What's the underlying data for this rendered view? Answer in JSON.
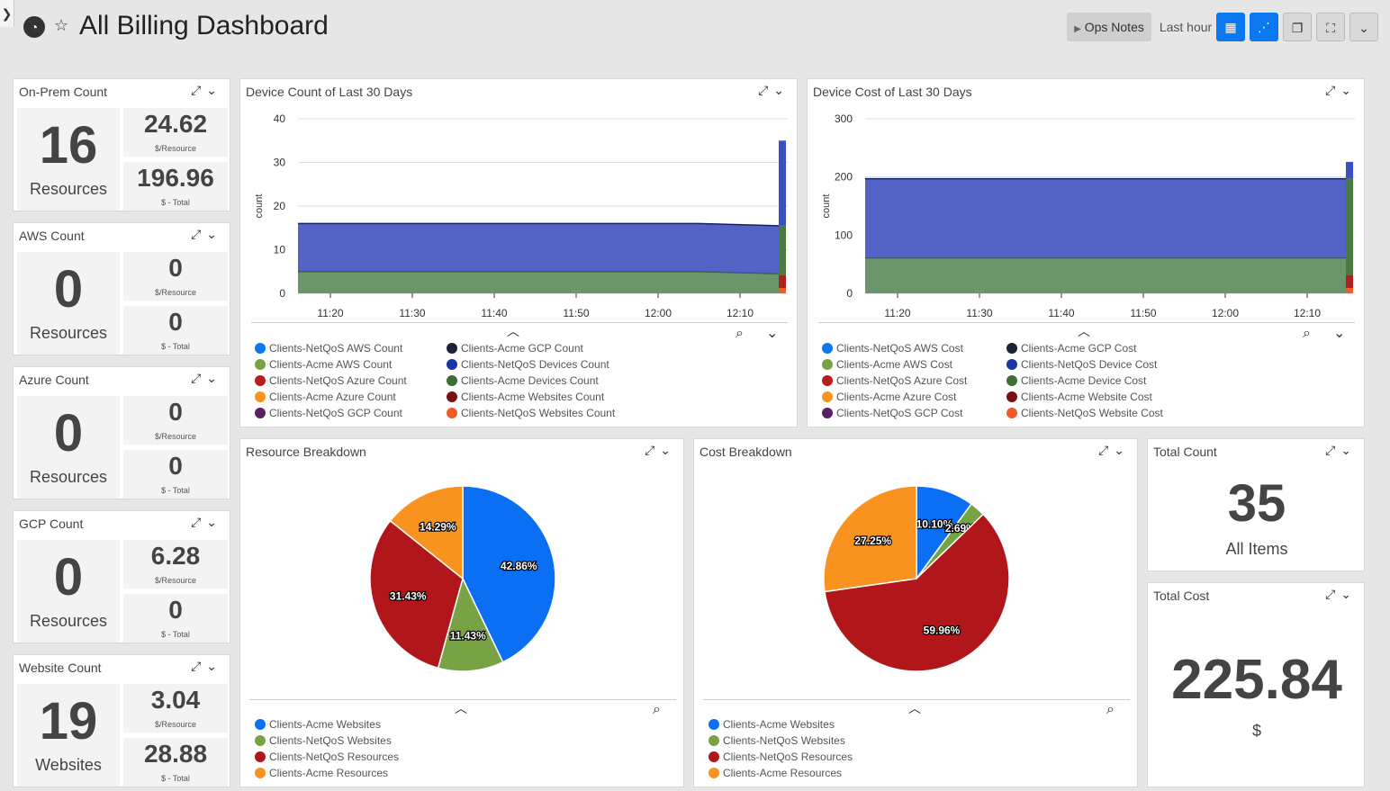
{
  "header": {
    "title": "All Billing Dashboard",
    "ops_notes": "Ops Notes",
    "time_range": "Last hour"
  },
  "counts": [
    {
      "title": "On-Prem Count",
      "big": "16",
      "big_label": "Resources",
      "per": "24.62",
      "per_label": "$/Resource",
      "total": "196.96",
      "total_label": "$ - Total"
    },
    {
      "title": "AWS Count",
      "big": "0",
      "big_label": "Resources",
      "per": "0",
      "per_label": "$/Resource",
      "total": "0",
      "total_label": "$ - Total"
    },
    {
      "title": "Azure Count",
      "big": "0",
      "big_label": "Resources",
      "per": "0",
      "per_label": "$/Resource",
      "total": "0",
      "total_label": "$ - Total"
    },
    {
      "title": "GCP Count",
      "big": "0",
      "big_label": "Resources",
      "per": "6.28",
      "per_label": "$/Resource",
      "total": "0",
      "total_label": "$ - Total"
    },
    {
      "title": "Website Count",
      "big": "19",
      "big_label": "Websites",
      "per": "3.04",
      "per_label": "$/Resource",
      "total": "28.88",
      "total_label": "$ - Total"
    }
  ],
  "device_count": {
    "title": "Device Count of Last 30 Days",
    "legend": [
      {
        "name": "Clients-NetQoS AWS Count",
        "color": "#0a78f0"
      },
      {
        "name": "Clients-Acme GCP Count",
        "color": "#1a2238"
      },
      {
        "name": "Clients-Acme AWS Count",
        "color": "#77a346"
      },
      {
        "name": "Clients-NetQoS Devices Count",
        "color": "#1a35a8"
      },
      {
        "name": "Clients-NetQoS Azure Count",
        "color": "#b81c1c"
      },
      {
        "name": "Clients-Acme Devices Count",
        "color": "#3f6d35"
      },
      {
        "name": "Clients-Acme Azure Count",
        "color": "#f7931e"
      },
      {
        "name": "Clients-Acme Websites Count",
        "color": "#7a1010"
      },
      {
        "name": "Clients-NetQoS GCP Count",
        "color": "#5c1e66"
      },
      {
        "name": "Clients-NetQoS Websites Count",
        "color": "#f25a2a"
      }
    ]
  },
  "device_cost": {
    "title": "Device Cost of Last 30 Days",
    "legend": [
      {
        "name": "Clients-NetQoS AWS Cost",
        "color": "#0a78f0"
      },
      {
        "name": "Clients-Acme GCP Cost",
        "color": "#1a2238"
      },
      {
        "name": "Clients-Acme AWS Cost",
        "color": "#77a346"
      },
      {
        "name": "Clients-NetQoS Device Cost",
        "color": "#1a35a8"
      },
      {
        "name": "Clients-NetQoS Azure Cost",
        "color": "#b81c1c"
      },
      {
        "name": "Clients-Acme Device Cost",
        "color": "#3f6d35"
      },
      {
        "name": "Clients-Acme Azure Cost",
        "color": "#f7931e"
      },
      {
        "name": "Clients-Acme Website Cost",
        "color": "#7a1010"
      },
      {
        "name": "Clients-NetQoS GCP Cost",
        "color": "#5c1e66"
      },
      {
        "name": "Clients-NetQoS Website Cost",
        "color": "#f25a2a"
      }
    ]
  },
  "resource_breakdown": {
    "title": "Resource Breakdown",
    "legend": [
      {
        "name": "Clients-Acme Websites",
        "color": "#0a6ff2"
      },
      {
        "name": "Clients-NetQoS Websites",
        "color": "#77a346"
      },
      {
        "name": "Clients-NetQoS Resources",
        "color": "#b0161a"
      },
      {
        "name": "Clients-Acme Resources",
        "color": "#f7931e"
      }
    ]
  },
  "cost_breakdown": {
    "title": "Cost Breakdown",
    "legend": [
      {
        "name": "Clients-Acme Websites",
        "color": "#0a6ff2"
      },
      {
        "name": "Clients-NetQoS Websites",
        "color": "#77a346"
      },
      {
        "name": "Clients-NetQoS Resources",
        "color": "#b0161a"
      },
      {
        "name": "Clients-Acme Resources",
        "color": "#f7931e"
      }
    ]
  },
  "total_count": {
    "title": "Total Count",
    "value": "35",
    "label": "All Items"
  },
  "total_cost": {
    "title": "Total Cost",
    "value": "225.84",
    "label": "$"
  },
  "chart_data": [
    {
      "type": "area",
      "title": "Device Count of Last 30 Days",
      "ylabel": "count",
      "ylim": [
        0,
        40
      ],
      "yticks": [
        "0",
        "10",
        "20",
        "30",
        "40"
      ],
      "xticks": [
        "11:20",
        "11:30",
        "11:40",
        "11:50",
        "12:00",
        "12:10"
      ],
      "series": [
        {
          "name": "Clients-Acme Devices Count",
          "values": [
            5,
            5,
            5,
            5,
            5,
            5,
            4.5
          ]
        },
        {
          "name": "Clients-NetQoS Devices Count",
          "values": [
            11,
            11,
            11,
            11,
            11,
            11,
            11
          ]
        }
      ],
      "spike": {
        "total": 35
      }
    },
    {
      "type": "area",
      "title": "Device Cost of Last 30 Days",
      "ylabel": "count",
      "ylim": [
        0,
        300
      ],
      "yticks": [
        "0",
        "100",
        "200",
        "300"
      ],
      "xticks": [
        "11:20",
        "11:30",
        "11:40",
        "11:50",
        "12:00",
        "12:10"
      ],
      "series": [
        {
          "name": "Clients-Acme Device Cost",
          "values": [
            61,
            61,
            61,
            61,
            61,
            61,
            61
          ]
        },
        {
          "name": "Clients-NetQoS Device Cost",
          "values": [
            136,
            136,
            136,
            136,
            136,
            136,
            136
          ]
        }
      ],
      "spike": {
        "total": 226
      }
    },
    {
      "type": "pie",
      "title": "Resource Breakdown",
      "labels": [
        "Clients-Acme Websites",
        "Clients-NetQoS Websites",
        "Clients-NetQoS Resources",
        "Clients-Acme Resources"
      ],
      "values": [
        42.86,
        11.43,
        31.43,
        14.29
      ],
      "value_labels": [
        "42.86%",
        "11.43%",
        "31.43%",
        "14.29%"
      ]
    },
    {
      "type": "pie",
      "title": "Cost Breakdown",
      "labels": [
        "Clients-Acme Websites",
        "Clients-NetQoS Websites",
        "Clients-NetQoS Resources",
        "Clients-Acme Resources"
      ],
      "values": [
        10.1,
        2.69,
        59.96,
        27.25
      ],
      "value_labels": [
        "10.10%",
        "2.69%",
        "59.96%",
        "27.25%"
      ]
    }
  ]
}
